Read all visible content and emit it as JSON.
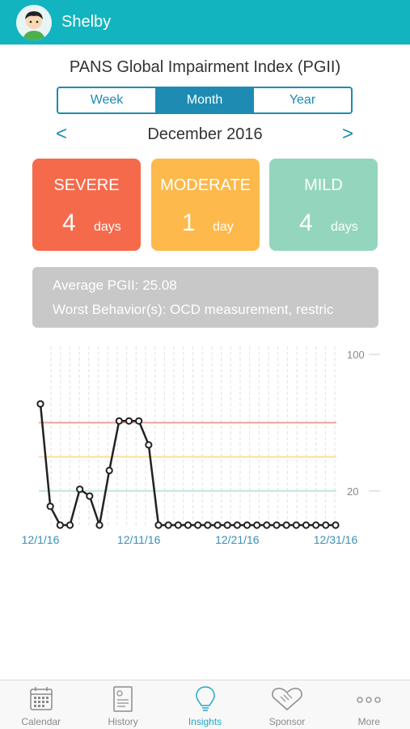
{
  "header": {
    "user_name": "Shelby"
  },
  "title": "PANS Global Impairment Index (PGII)",
  "segments": [
    "Week",
    "Month",
    "Year"
  ],
  "period": {
    "label": "December 2016",
    "prev": "<",
    "next": ">"
  },
  "cards": [
    {
      "title": "SEVERE",
      "count": "4",
      "unit": "days",
      "color": "#f56a4b"
    },
    {
      "title": "MODERATE",
      "count": "1",
      "unit": "day",
      "color": "#fdb94b"
    },
    {
      "title": "MILD",
      "count": "4",
      "unit": "days",
      "color": "#94d6bd"
    }
  ],
  "summary": {
    "average": "Average PGII: 25.08",
    "worst": "Worst Behavior(s): OCD measurement, restric"
  },
  "chart_data": {
    "type": "line",
    "ylim": [
      0,
      100
    ],
    "y_ticks": [
      "100",
      "20"
    ],
    "x_tick_labels": [
      "12/1/16",
      "12/11/16",
      "12/21/16",
      "12/31/16"
    ],
    "x": [
      1,
      2,
      3,
      4,
      5,
      6,
      7,
      8,
      9,
      10,
      11,
      12,
      13,
      14,
      15,
      16,
      17,
      18,
      19,
      20,
      21,
      22,
      23,
      24,
      25,
      26,
      27,
      28,
      29,
      30,
      31
    ],
    "values": [
      71,
      11,
      0,
      0,
      21,
      17,
      0,
      32,
      61,
      61,
      61,
      47,
      0,
      0,
      0,
      0,
      0,
      0,
      0,
      0,
      0,
      0,
      0,
      0,
      0,
      0,
      0,
      0,
      0,
      0,
      0
    ],
    "threshold_lines": [
      {
        "value": 60,
        "color": "#f4a3a0"
      },
      {
        "value": 40,
        "color": "#fbe09a"
      },
      {
        "value": 20,
        "color": "#bfe6d6"
      }
    ],
    "line_color": "#222222"
  },
  "tabs": [
    {
      "label": "Calendar",
      "icon": "calendar-icon",
      "active": false
    },
    {
      "label": "History",
      "icon": "history-icon",
      "active": false
    },
    {
      "label": "Insights",
      "icon": "lightbulb-icon",
      "active": true
    },
    {
      "label": "Sponsor",
      "icon": "handshake-icon",
      "active": false
    },
    {
      "label": "More",
      "icon": "more-icon",
      "active": false
    }
  ]
}
